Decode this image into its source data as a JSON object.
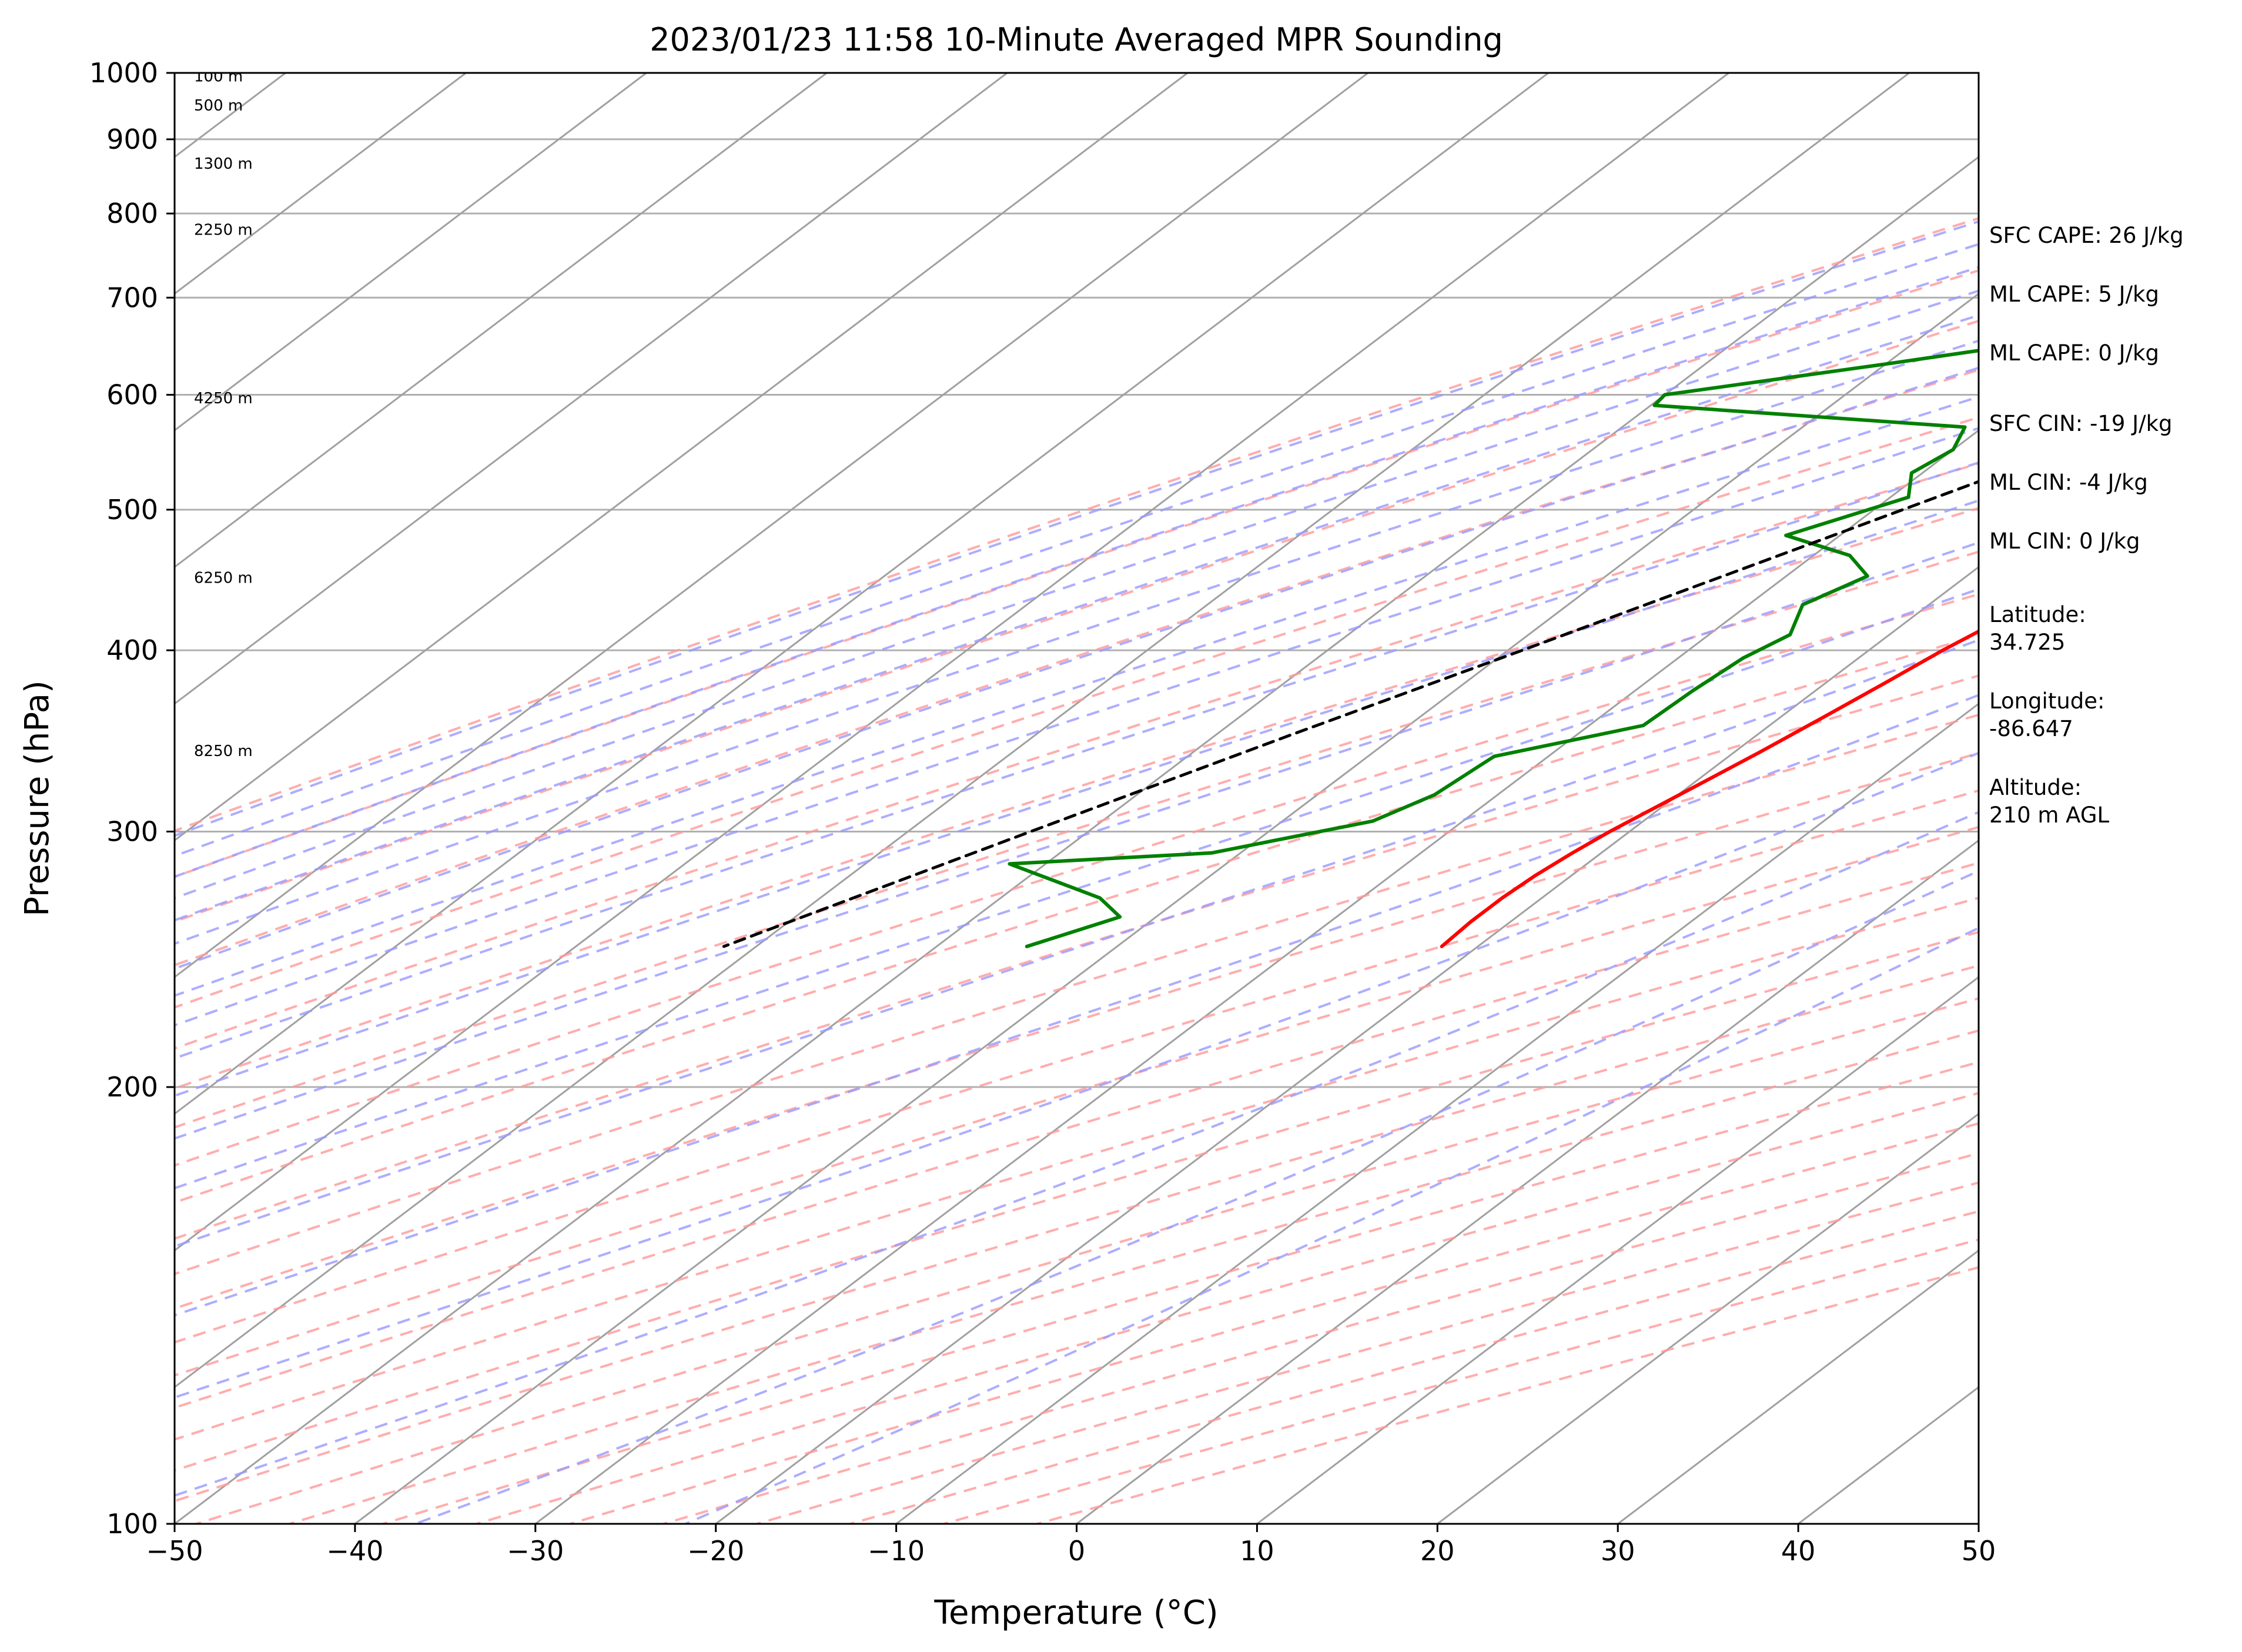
{
  "chart_data": {
    "type": "line",
    "title": "2023/01/23 11:58 10-Minute Averaged MPR Sounding",
    "xlabel": "Temperature (°C)",
    "ylabel": "Pressure (hPa)",
    "xlim": [
      -50,
      50
    ],
    "ylim": [
      1000,
      100
    ],
    "y_scale": "log",
    "x_ticks": [
      -50,
      -40,
      -30,
      -20,
      -10,
      0,
      10,
      20,
      30,
      40,
      50
    ],
    "x_tick_labels": [
      "−50",
      "−40",
      "−30",
      "−20",
      "−10",
      "0",
      "10",
      "20",
      "30",
      "40",
      "50"
    ],
    "y_ticks": [
      1000,
      900,
      800,
      700,
      600,
      500,
      400,
      300,
      200,
      100
    ],
    "y_tick_labels": [
      "1000",
      "900",
      "800",
      "700",
      "600",
      "500",
      "400",
      "300",
      "200",
      "100"
    ],
    "grid": true,
    "series": [
      {
        "kind": "temperature",
        "color": "#ff0000",
        "points": [
          [
            1000,
            3.4
          ],
          [
            990,
            3.9
          ],
          [
            980,
            3.6
          ],
          [
            970,
            3.0
          ],
          [
            960,
            2.3
          ],
          [
            950,
            1.2
          ],
          [
            940,
            0.5
          ],
          [
            930,
            0.2
          ],
          [
            920,
            -0.4
          ],
          [
            900,
            -1.4
          ],
          [
            880,
            -2.0
          ],
          [
            860,
            -2.4
          ],
          [
            840,
            -2.6
          ],
          [
            820,
            -2.6
          ],
          [
            810,
            -2.6
          ],
          [
            800,
            -2.4
          ],
          [
            790,
            -2.6
          ],
          [
            780,
            -2.4
          ],
          [
            760,
            -2.3
          ],
          [
            740,
            -2.5
          ],
          [
            720,
            -2.7
          ],
          [
            700,
            -2.8
          ],
          [
            680,
            -2.9
          ],
          [
            660,
            -3.4
          ],
          [
            640,
            -4.0
          ],
          [
            620,
            -4.7
          ],
          [
            600,
            -5.5
          ],
          [
            580,
            -6.5
          ],
          [
            560,
            -7.4
          ],
          [
            540,
            -8.4
          ],
          [
            520,
            -9.4
          ],
          [
            500,
            -10.4
          ],
          [
            480,
            -11.4
          ],
          [
            460,
            -12.6
          ],
          [
            440,
            -13.9
          ],
          [
            420,
            -14.9
          ],
          [
            400,
            -15.9
          ],
          [
            380,
            -16.7
          ],
          [
            360,
            -17.6
          ],
          [
            340,
            -18.6
          ],
          [
            320,
            -19.8
          ],
          [
            300,
            -21.1
          ],
          [
            290,
            -21.6
          ],
          [
            280,
            -22.0
          ],
          [
            270,
            -22.2
          ],
          [
            260,
            -22.2
          ],
          [
            250,
            -22.0
          ]
        ]
      },
      {
        "kind": "dewpoint",
        "color": "#008000",
        "points": [
          [
            1000,
            1.7
          ],
          [
            985,
            -3.0
          ],
          [
            970,
            -8.2
          ],
          [
            955,
            -10.5
          ],
          [
            940,
            -11.5
          ],
          [
            920,
            -13.0
          ],
          [
            900,
            -12.8
          ],
          [
            890,
            -14.5
          ],
          [
            875,
            -15.8
          ],
          [
            865,
            -16.5
          ],
          [
            850,
            -17.0
          ],
          [
            840,
            -17.4
          ],
          [
            830,
            -19.9
          ],
          [
            815,
            -20.8
          ],
          [
            800,
            -20.7
          ],
          [
            785,
            -20.6
          ],
          [
            770,
            -20.2
          ],
          [
            760,
            -19.9
          ],
          [
            750,
            -20.0
          ],
          [
            740,
            -22.8
          ],
          [
            725,
            -21.2
          ],
          [
            710,
            -21.3
          ],
          [
            700,
            -23.5
          ],
          [
            670,
            -28.0
          ],
          [
            630,
            -40.0
          ],
          [
            600,
            -50.0
          ],
          [
            590,
            -49.8
          ],
          [
            570,
            -31.0
          ],
          [
            550,
            -30.0
          ],
          [
            530,
            -30.6
          ],
          [
            510,
            -29.0
          ],
          [
            480,
            -33.0
          ],
          [
            465,
            -28.0
          ],
          [
            450,
            -25.5
          ],
          [
            430,
            -27.0
          ],
          [
            410,
            -25.5
          ],
          [
            395,
            -26.4
          ],
          [
            375,
            -26.8
          ],
          [
            355,
            -27.0
          ],
          [
            338,
            -33.0
          ],
          [
            318,
            -33.5
          ],
          [
            305,
            -35.0
          ],
          [
            290,
            -41.6
          ],
          [
            285,
            -52.0
          ],
          [
            270,
            -44.5
          ],
          [
            262,
            -42.0
          ],
          [
            250,
            -45.0
          ]
        ]
      },
      {
        "kind": "parcel",
        "color": "#000000",
        "points": [
          [
            1000,
            3.6
          ],
          [
            950,
            0.5
          ],
          [
            925,
            -1.0
          ],
          [
            900,
            -2.2
          ],
          [
            850,
            -4.5
          ],
          [
            800,
            -6.8
          ],
          [
            750,
            -9.5
          ],
          [
            700,
            -12.5
          ],
          [
            650,
            -15.9
          ],
          [
            600,
            -19.7
          ],
          [
            550,
            -23.8
          ],
          [
            500,
            -28.4
          ],
          [
            450,
            -33.5
          ],
          [
            400,
            -39.2
          ],
          [
            350,
            -45.8
          ],
          [
            300,
            -53.2
          ],
          [
            250,
            -61.8
          ]
        ]
      }
    ],
    "height_labels": [
      {
        "text": "8250 m",
        "p": 341
      },
      {
        "text": "6250 m",
        "p": 449
      },
      {
        "text": "4250 m",
        "p": 597
      },
      {
        "text": "2250 m",
        "p": 780
      },
      {
        "text": "1300 m",
        "p": 866
      },
      {
        "text": "500 m",
        "p": 950
      },
      {
        "text": "100 m",
        "p": 995
      }
    ],
    "annotations": [
      "SFC CAPE: 26 J/kg",
      "ML CAPE: 5 J/kg",
      "ML CAPE: 0 J/kg",
      "SFC CIN: -19 J/kg",
      "ML CIN: -4 J/kg",
      "ML CIN: 0 J/kg",
      "Latitude:",
      "34.725",
      "Longitude:",
      "-86.647",
      "Altitude:",
      "210 m AGL"
    ],
    "reference_lines": {
      "isotherm_color": "#a0a0a0",
      "dry_adiabat_color": "#ff9999",
      "moist_adiabat_color": "#9999ff",
      "mixing_ratio_color": "#88c488"
    }
  }
}
